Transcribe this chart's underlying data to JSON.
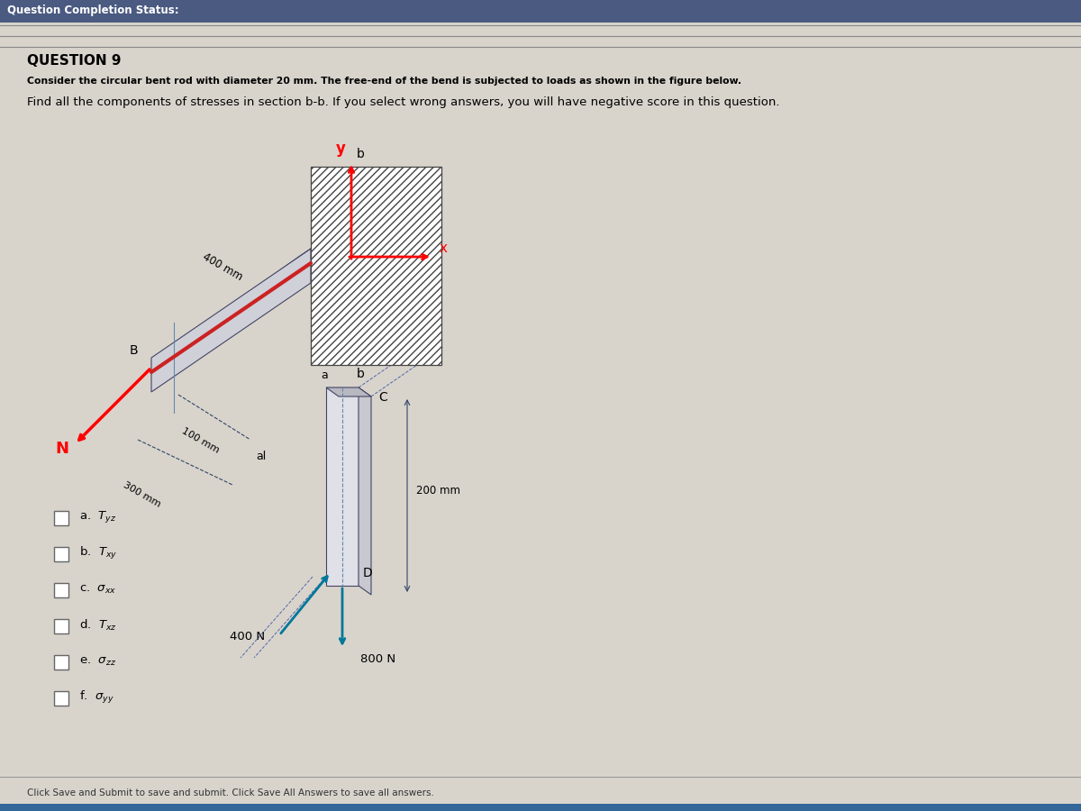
{
  "bg_color": "#d8d4cc",
  "panel_color": "#eae6de",
  "title_bar_color": "#4a5a80",
  "title_bar_text": "Question Completion Status:",
  "question_number": "QUESTION 9",
  "bold_text": "Consider the circular bent rod with diameter 20 mm. The free-end of the bend is subjected to loads as shown in the figure below.",
  "main_text": "Find all the components of stresses in section b-b. If you select wrong answers, you will have negative score in this question.",
  "footer_text": "Click Save and Submit to save and submit. Click Save All Answers to save all answers.",
  "choices_latex": [
    "a. $T_{yz}$",
    "b. $T_{xy}$",
    "c. $\\sigma_{xx}$",
    "d. $T_{xz}$",
    "e. $\\sigma_{zz}$",
    "f. $\\sigma_{yy}$"
  ]
}
